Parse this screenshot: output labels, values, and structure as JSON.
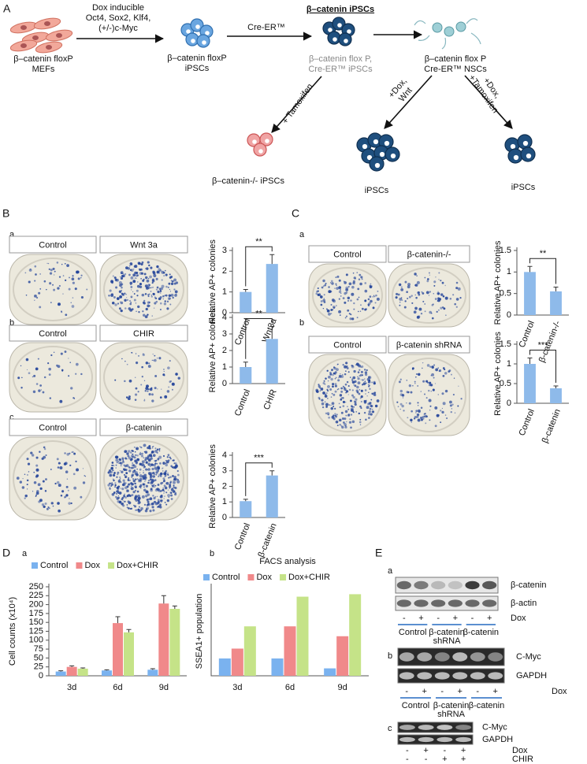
{
  "panel_labels": [
    "A",
    "B",
    "a",
    "b",
    "c",
    "C",
    "a",
    "b",
    "D",
    "a",
    "b",
    "E",
    "a",
    "b",
    "c"
  ],
  "diagram": {
    "header": "β–catenin iPSCs",
    "nodes": [
      {
        "label": [
          "β–catenin floxP",
          "MEFs"
        ]
      },
      {
        "label": [
          "β–catenin floxP",
          "iPSCs"
        ]
      },
      {
        "label": [
          "β–catenin flox P,",
          "Cre-ER™ iPSCs"
        ]
      },
      {
        "label": [
          "β–catenin flox P",
          "Cre-ER™ NSCs"
        ]
      },
      {
        "label": [
          "β–catenin-/- iPSCs"
        ]
      },
      {
        "label": [
          "iPSCs"
        ]
      },
      {
        "label": [
          "iPSCs"
        ]
      }
    ],
    "arrows": [
      {
        "label": [
          "Dox inducible",
          "Oct4, Sox2, Klf4,",
          "(+/-)c-Myc"
        ]
      },
      {
        "label": [
          "Cre-ER™"
        ]
      },
      {
        "label": [
          "+ Tamoxifen"
        ]
      },
      {
        "label": [
          "+Dox,",
          "Wnt"
        ]
      },
      {
        "label": [
          "+Dox,",
          "+Tamoxifen"
        ]
      }
    ]
  },
  "photos": [
    {
      "labels": [
        "Control",
        "Wnt 3a"
      ]
    },
    {
      "labels": [
        "Control",
        "CHIR"
      ]
    },
    {
      "labels": [
        "Control",
        "β-catenin"
      ]
    },
    {
      "labels": [
        "Control",
        "β-catenin-/-"
      ]
    },
    {
      "labels": [
        "Control",
        "β-catenin shRNA"
      ]
    }
  ],
  "chart_data": [
    {
      "type": "bar",
      "y_label": "Relative AP+ colonies",
      "categories": [
        "Control",
        "Wnt3a"
      ],
      "values": [
        1,
        2.35
      ],
      "errors": [
        0.12,
        0.45
      ],
      "color": "#8ebaea",
      "annotation": "**",
      "ylim": [
        0,
        3
      ],
      "yticks": [
        0,
        1,
        2,
        3
      ]
    },
    {
      "type": "bar",
      "y_label": "Relative AP+ colonies",
      "categories": [
        "Control",
        "CHIR"
      ],
      "values": [
        1,
        2.7
      ],
      "errors": [
        0.3,
        0.75
      ],
      "color": "#8ebaea",
      "annotation": "**",
      "ylim": [
        0,
        4
      ],
      "yticks": [
        0,
        1,
        2,
        3,
        4
      ]
    },
    {
      "type": "bar",
      "y_label": "Relative AP+ colonies",
      "categories": [
        "Control",
        "β-catenin"
      ],
      "values": [
        1.05,
        2.7
      ],
      "errors": [
        0.12,
        0.3
      ],
      "color": "#8ebaea",
      "annotation": "***",
      "ylim": [
        0,
        4
      ],
      "yticks": [
        0,
        1,
        2,
        3,
        4
      ]
    },
    {
      "type": "bar",
      "y_label": "Relative AP+ colonies",
      "categories": [
        "Control",
        "β-catenin-/-"
      ],
      "values": [
        1,
        0.55
      ],
      "errors": [
        0.13,
        0.1
      ],
      "color": "#8ebaea",
      "annotation": "**",
      "ylim": [
        0,
        1.5
      ],
      "yticks": [
        0,
        0.5,
        1,
        1.5
      ]
    },
    {
      "type": "bar",
      "y_label": "Relative AP+ colonies",
      "categories": [
        "Control",
        "β-catenin"
      ],
      "values": [
        1,
        0.38
      ],
      "errors": [
        0.15,
        0.06
      ],
      "color": "#8ebaea",
      "annotation": "***",
      "ylim": [
        0,
        1.5
      ],
      "yticks": [
        0,
        0.5,
        1,
        1.5
      ]
    },
    {
      "type": "bar",
      "y_label": "Cell counts (x10⁴)",
      "categories": [
        "3d",
        "6d",
        "9d"
      ],
      "series": [
        {
          "name": "Control",
          "color": "#7ab2ef",
          "values": [
            12,
            15,
            17
          ],
          "errors": [
            2,
            2,
            3
          ]
        },
        {
          "name": "Dox",
          "color": "#f0898a",
          "values": [
            25,
            148,
            203
          ],
          "errors": [
            3,
            18,
            22
          ]
        },
        {
          "name": "Dox+CHIR",
          "color": "#c5e388",
          "values": [
            20,
            122,
            188
          ],
          "errors": [
            2,
            8,
            8
          ]
        }
      ],
      "ylim": [
        0,
        250
      ],
      "yticks": [
        0,
        25,
        50,
        75,
        100,
        125,
        150,
        175,
        200,
        225,
        250
      ]
    },
    {
      "type": "bar",
      "title": "FACS analysis",
      "y_label": "SSEA1+ population",
      "categories": [
        "3d",
        "6d",
        "9d"
      ],
      "series": [
        {
          "name": "Control",
          "color": "#7ab2ef",
          "values": [
            7,
            7,
            3
          ]
        },
        {
          "name": "Dox",
          "color": "#f0898a",
          "values": [
            11,
            20,
            16
          ]
        },
        {
          "name": "Dox+CHIR",
          "color": "#c5e388",
          "values": [
            20,
            32,
            33
          ]
        }
      ],
      "ylim": [
        0,
        36
      ]
    }
  ],
  "blots": [
    {
      "rows": [
        "β-catenin",
        "β-actin"
      ],
      "treatments": [
        {
          "name": "Dox",
          "signs": [
            "-",
            "+",
            "-",
            "+",
            "-",
            "+"
          ]
        }
      ],
      "groups": [
        [
          "Control"
        ],
        [
          "β-catenin",
          "shRNA"
        ],
        [
          "β-catenin"
        ]
      ]
    },
    {
      "rows": [
        "C-Myc",
        "GAPDH"
      ],
      "treatments": [
        {
          "name": "Dox",
          "signs": [
            "-",
            "+",
            "-",
            "+",
            "-",
            "+"
          ]
        }
      ],
      "groups": [
        [
          "Control"
        ],
        [
          "β-catenin",
          "shRNA"
        ],
        [
          "β-catenin"
        ]
      ]
    },
    {
      "rows": [
        "C-Myc",
        "GAPDH"
      ],
      "treatments": [
        {
          "name": "Dox",
          "signs": [
            "-",
            "+",
            "-",
            "+"
          ]
        },
        {
          "name": "CHIR",
          "signs": [
            "-",
            "-",
            "+",
            "+"
          ]
        }
      ]
    }
  ]
}
